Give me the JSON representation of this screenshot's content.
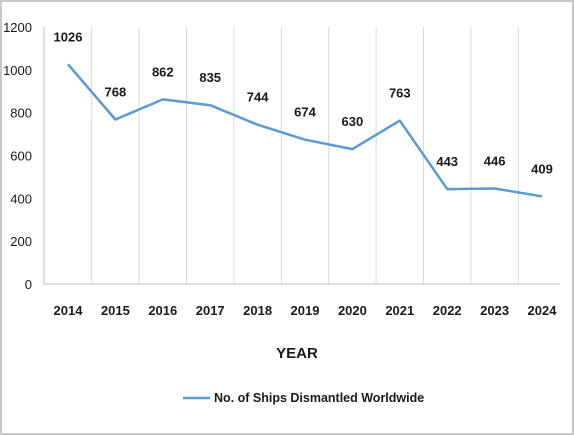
{
  "chart_data": {
    "type": "line",
    "categories": [
      "2014",
      "2015",
      "2016",
      "2017",
      "2018",
      "2019",
      "2020",
      "2021",
      "2022",
      "2023",
      "2024"
    ],
    "series": [
      {
        "name": "No. of Ships Dismantled Worldwide",
        "values": [
          1026,
          768,
          862,
          835,
          744,
          674,
          630,
          763,
          443,
          446,
          409
        ],
        "data_labels": [
          "1026",
          "768",
          "862",
          "835",
          "744",
          "674",
          "630",
          "763",
          "443",
          "446",
          "409"
        ]
      }
    ],
    "xlabel": "YEAR",
    "ylabel": "",
    "ylim": [
      0,
      1200
    ],
    "yticks": [
      "0",
      "200",
      "400",
      "600",
      "800",
      "1000",
      "1200"
    ],
    "grid": "vertical",
    "legend": "bottom",
    "colors": {
      "line": "#5b9bd5",
      "grid": "#d9d9d9",
      "axis": "#bfbfbf"
    }
  }
}
